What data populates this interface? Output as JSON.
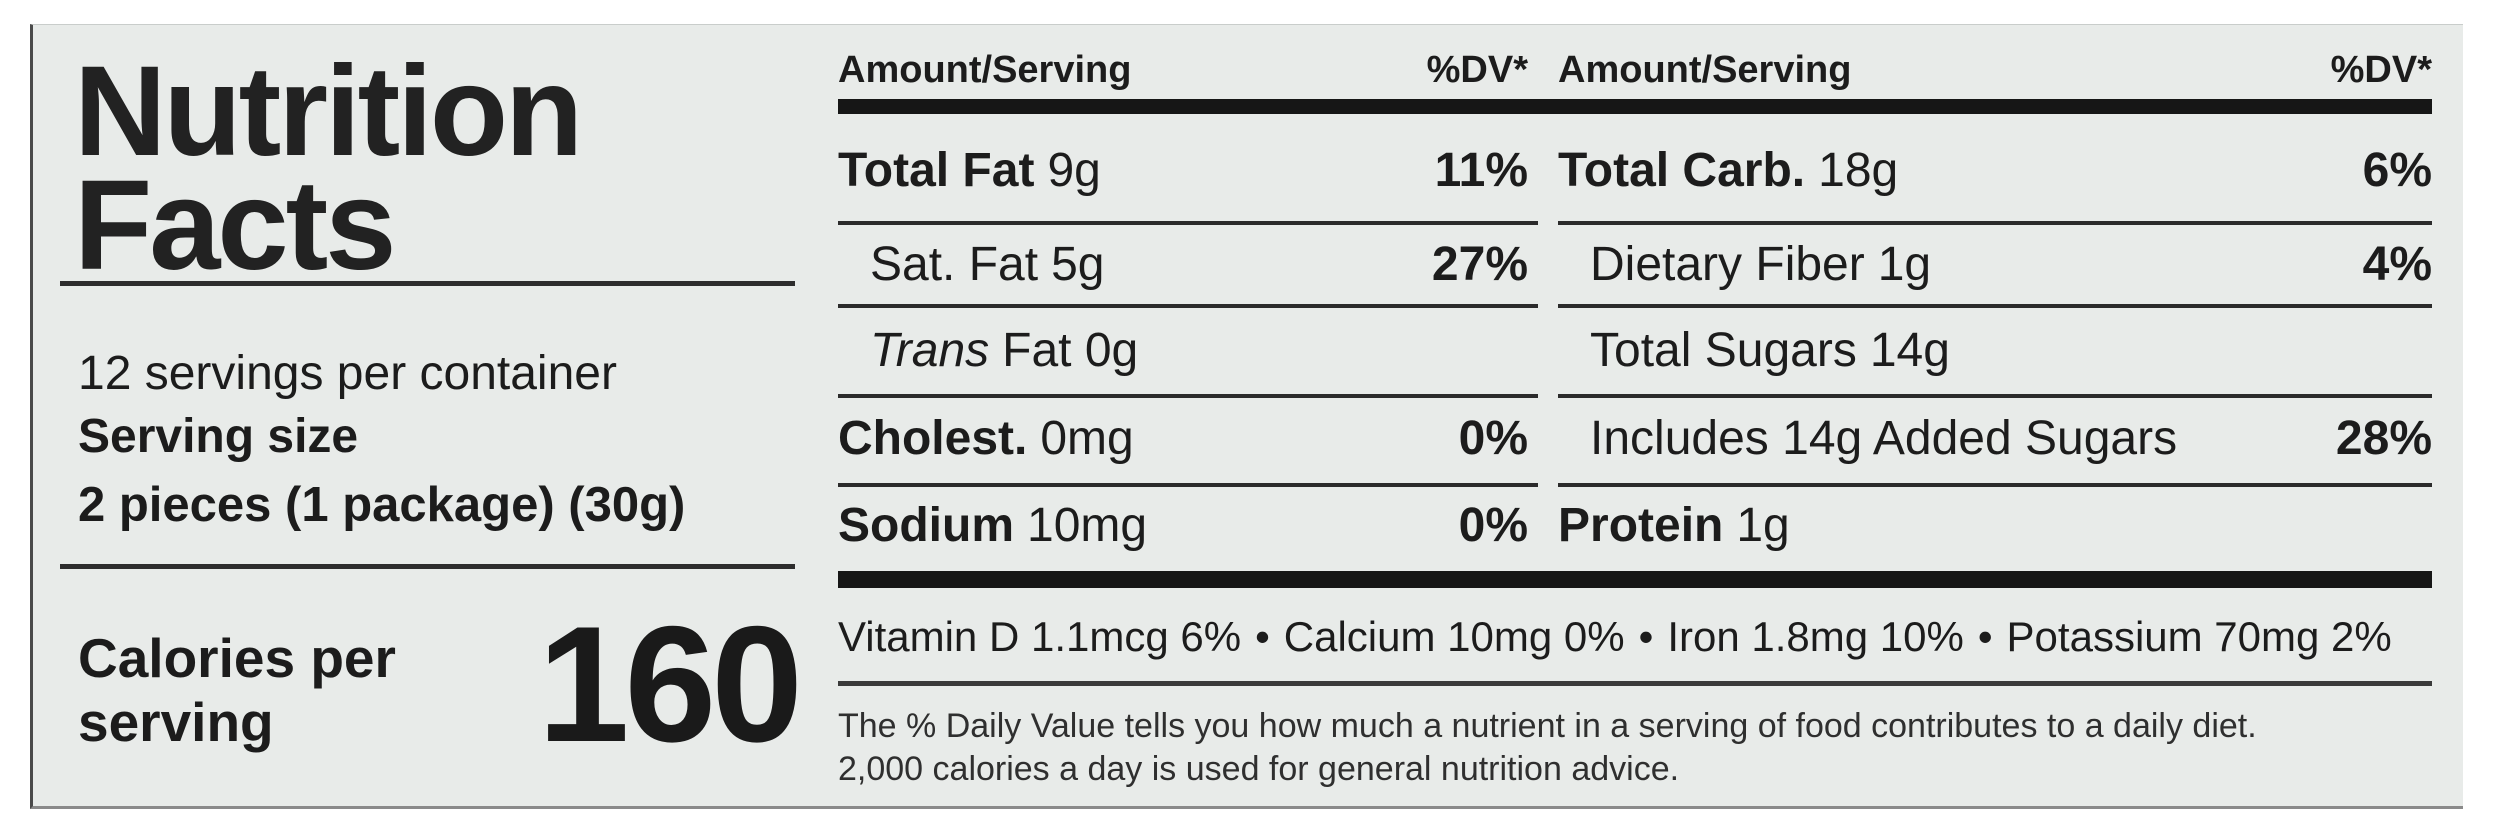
{
  "label": {
    "title": "Nutrition Facts",
    "servings_per_container": "12 servings per container",
    "serving_size_label": "Serving size",
    "serving_size_value": "2 pieces (1 package) (30g)",
    "calories_label": "Calories per serving",
    "calories_value": "160",
    "columns_header": {
      "amount": "Amount/Serving",
      "dv": "%DV*"
    },
    "left_column": {
      "rows": [
        {
          "name": "Total Fat",
          "amount": "9g",
          "dv": "11%"
        },
        {
          "name": "Sat. Fat",
          "amount": "5g",
          "dv": "27%"
        },
        {
          "name": "Trans",
          "amount": "Fat 0g",
          "dv": ""
        },
        {
          "name": "Cholest.",
          "amount": "0mg",
          "dv": "0%"
        },
        {
          "name": "Sodium",
          "amount": "10mg",
          "dv": "0%"
        }
      ]
    },
    "right_column": {
      "rows": [
        {
          "name": "Total Carb.",
          "amount": "18g",
          "dv": "6%"
        },
        {
          "name": "Dietary Fiber",
          "amount": "1g",
          "dv": "4%"
        },
        {
          "name": "Total Sugars",
          "amount": "14g",
          "dv": ""
        },
        {
          "name": "Includes 14g Added Sugars",
          "amount": "",
          "dv": "28%"
        },
        {
          "name": "Protein",
          "amount": "1g",
          "dv": ""
        }
      ]
    },
    "micronutrients": {
      "separator": "•",
      "items": [
        "Vitamin D 1.1mcg 6%",
        "Calcium 10mg 0%",
        "Iron 1.8mg 10%",
        "Potassium 70mg 2%"
      ]
    },
    "footnote_line1": "The % Daily Value tells you how much a nutrient in a serving of food contributes to a daily diet.",
    "footnote_line2": "2,000 calories a day is used for general nutrition advice."
  }
}
